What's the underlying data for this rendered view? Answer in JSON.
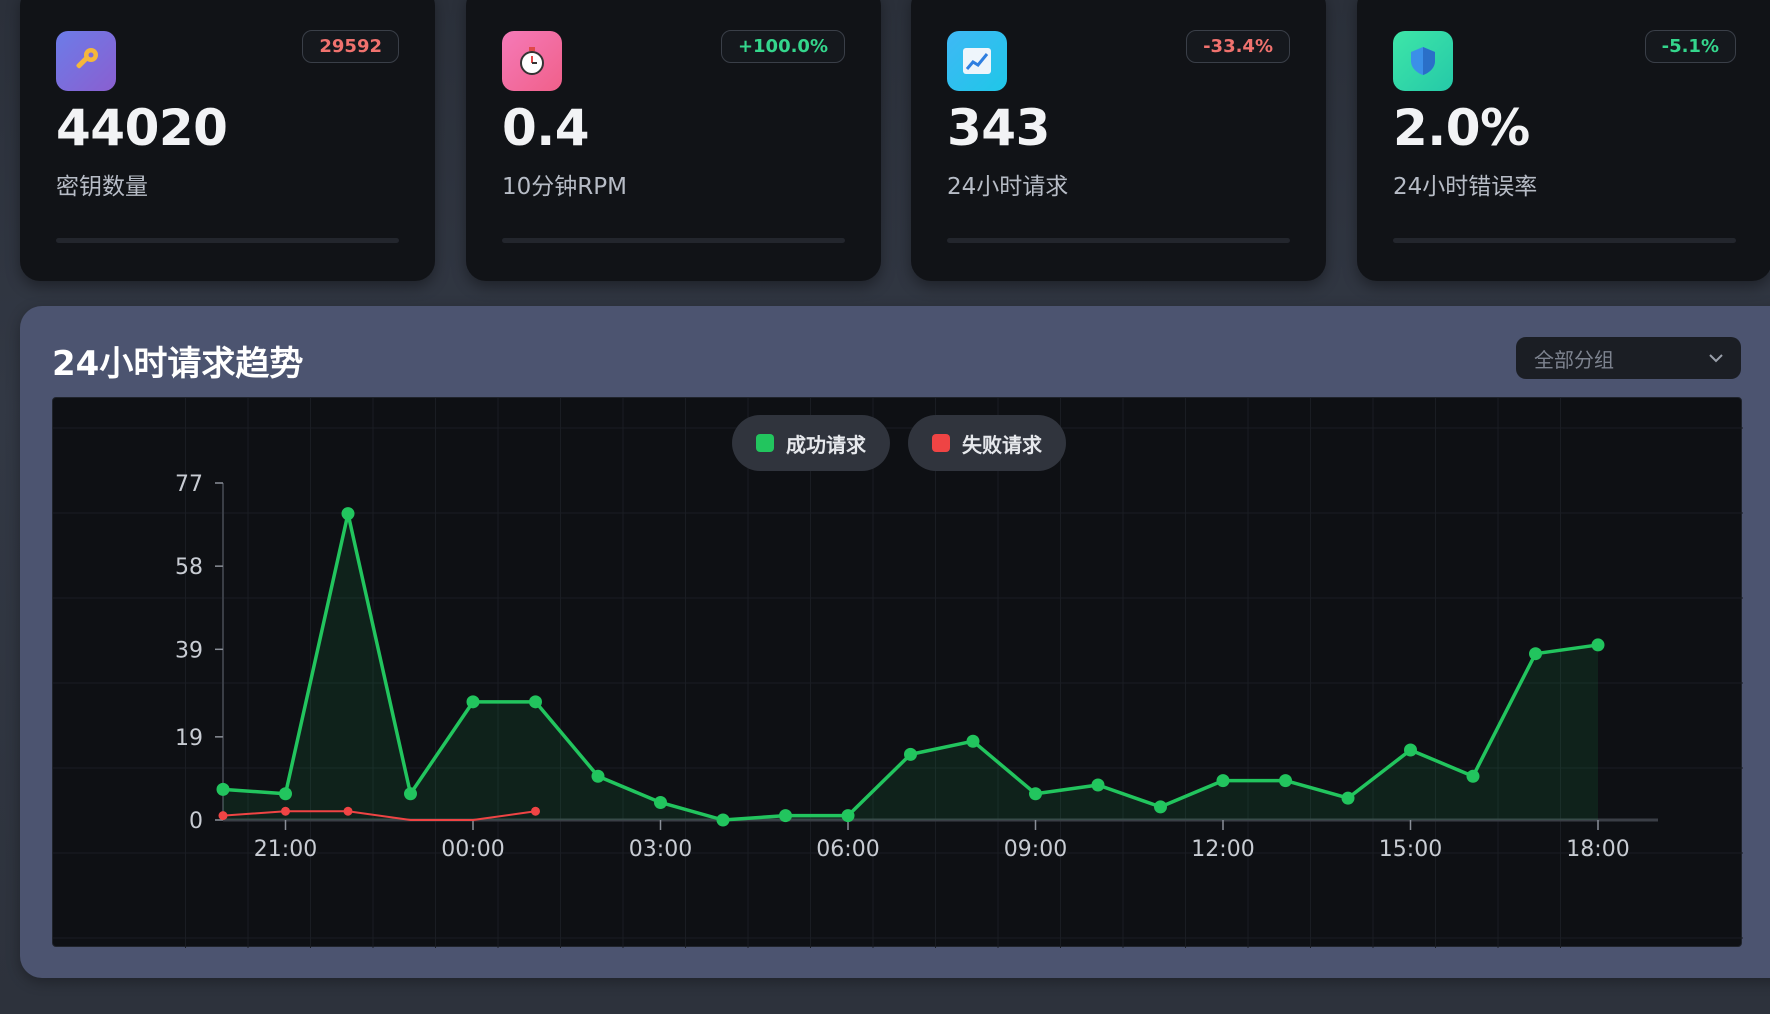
{
  "stats": [
    {
      "value": "44020",
      "label": "密钥数量",
      "badge": "29592",
      "badge_tone": "red",
      "icon": "key-icon",
      "icon_color": "#7d6ae0"
    },
    {
      "value": "0.4",
      "label": "10分钟RPM",
      "badge": "+100.0%",
      "badge_tone": "green",
      "icon": "stopwatch-icon",
      "icon_color": "#f06aa0"
    },
    {
      "value": "343",
      "label": "24小时请求",
      "badge": "-33.4%",
      "badge_tone": "red",
      "icon": "chart-up-icon",
      "icon_color": "#27b7f0"
    },
    {
      "value": "2.0%",
      "label": "24小时错误率",
      "badge": "-5.1%",
      "badge_tone": "green",
      "icon": "shield-icon",
      "icon_color": "#2fd8a0"
    }
  ],
  "panel": {
    "title": "24小时请求趋势",
    "group_select": "全部分组"
  },
  "legend": [
    {
      "label": "成功请求",
      "color": "#22c55e"
    },
    {
      "label": "失败请求",
      "color": "#ef4444"
    }
  ],
  "chart_data": {
    "type": "line",
    "x": [
      "20:00",
      "21:00",
      "22:00",
      "23:00",
      "00:00",
      "01:00",
      "02:00",
      "03:00",
      "04:00",
      "05:00",
      "06:00",
      "07:00",
      "08:00",
      "09:00",
      "10:00",
      "11:00",
      "12:00",
      "13:00",
      "14:00",
      "15:00",
      "16:00",
      "17:00",
      "18:00"
    ],
    "x_ticks": [
      "21:00",
      "00:00",
      "03:00",
      "06:00",
      "09:00",
      "12:00",
      "15:00",
      "18:00"
    ],
    "y_ticks": [
      0,
      19,
      39,
      58,
      77
    ],
    "ylim": [
      0,
      77
    ],
    "series": [
      {
        "name": "成功请求",
        "color": "#22c55e",
        "values": [
          7,
          6,
          70,
          6,
          27,
          27,
          10,
          4,
          0,
          1,
          1,
          15,
          18,
          6,
          8,
          3,
          9,
          9,
          5,
          16,
          10,
          38,
          40
        ]
      },
      {
        "name": "失败请求",
        "color": "#ef4444",
        "values": [
          1,
          2,
          2,
          0,
          0,
          2,
          null,
          null,
          null,
          null,
          null,
          null,
          null,
          null,
          null,
          null,
          null,
          null,
          null,
          null,
          null,
          null,
          null
        ]
      }
    ],
    "grid": true
  }
}
